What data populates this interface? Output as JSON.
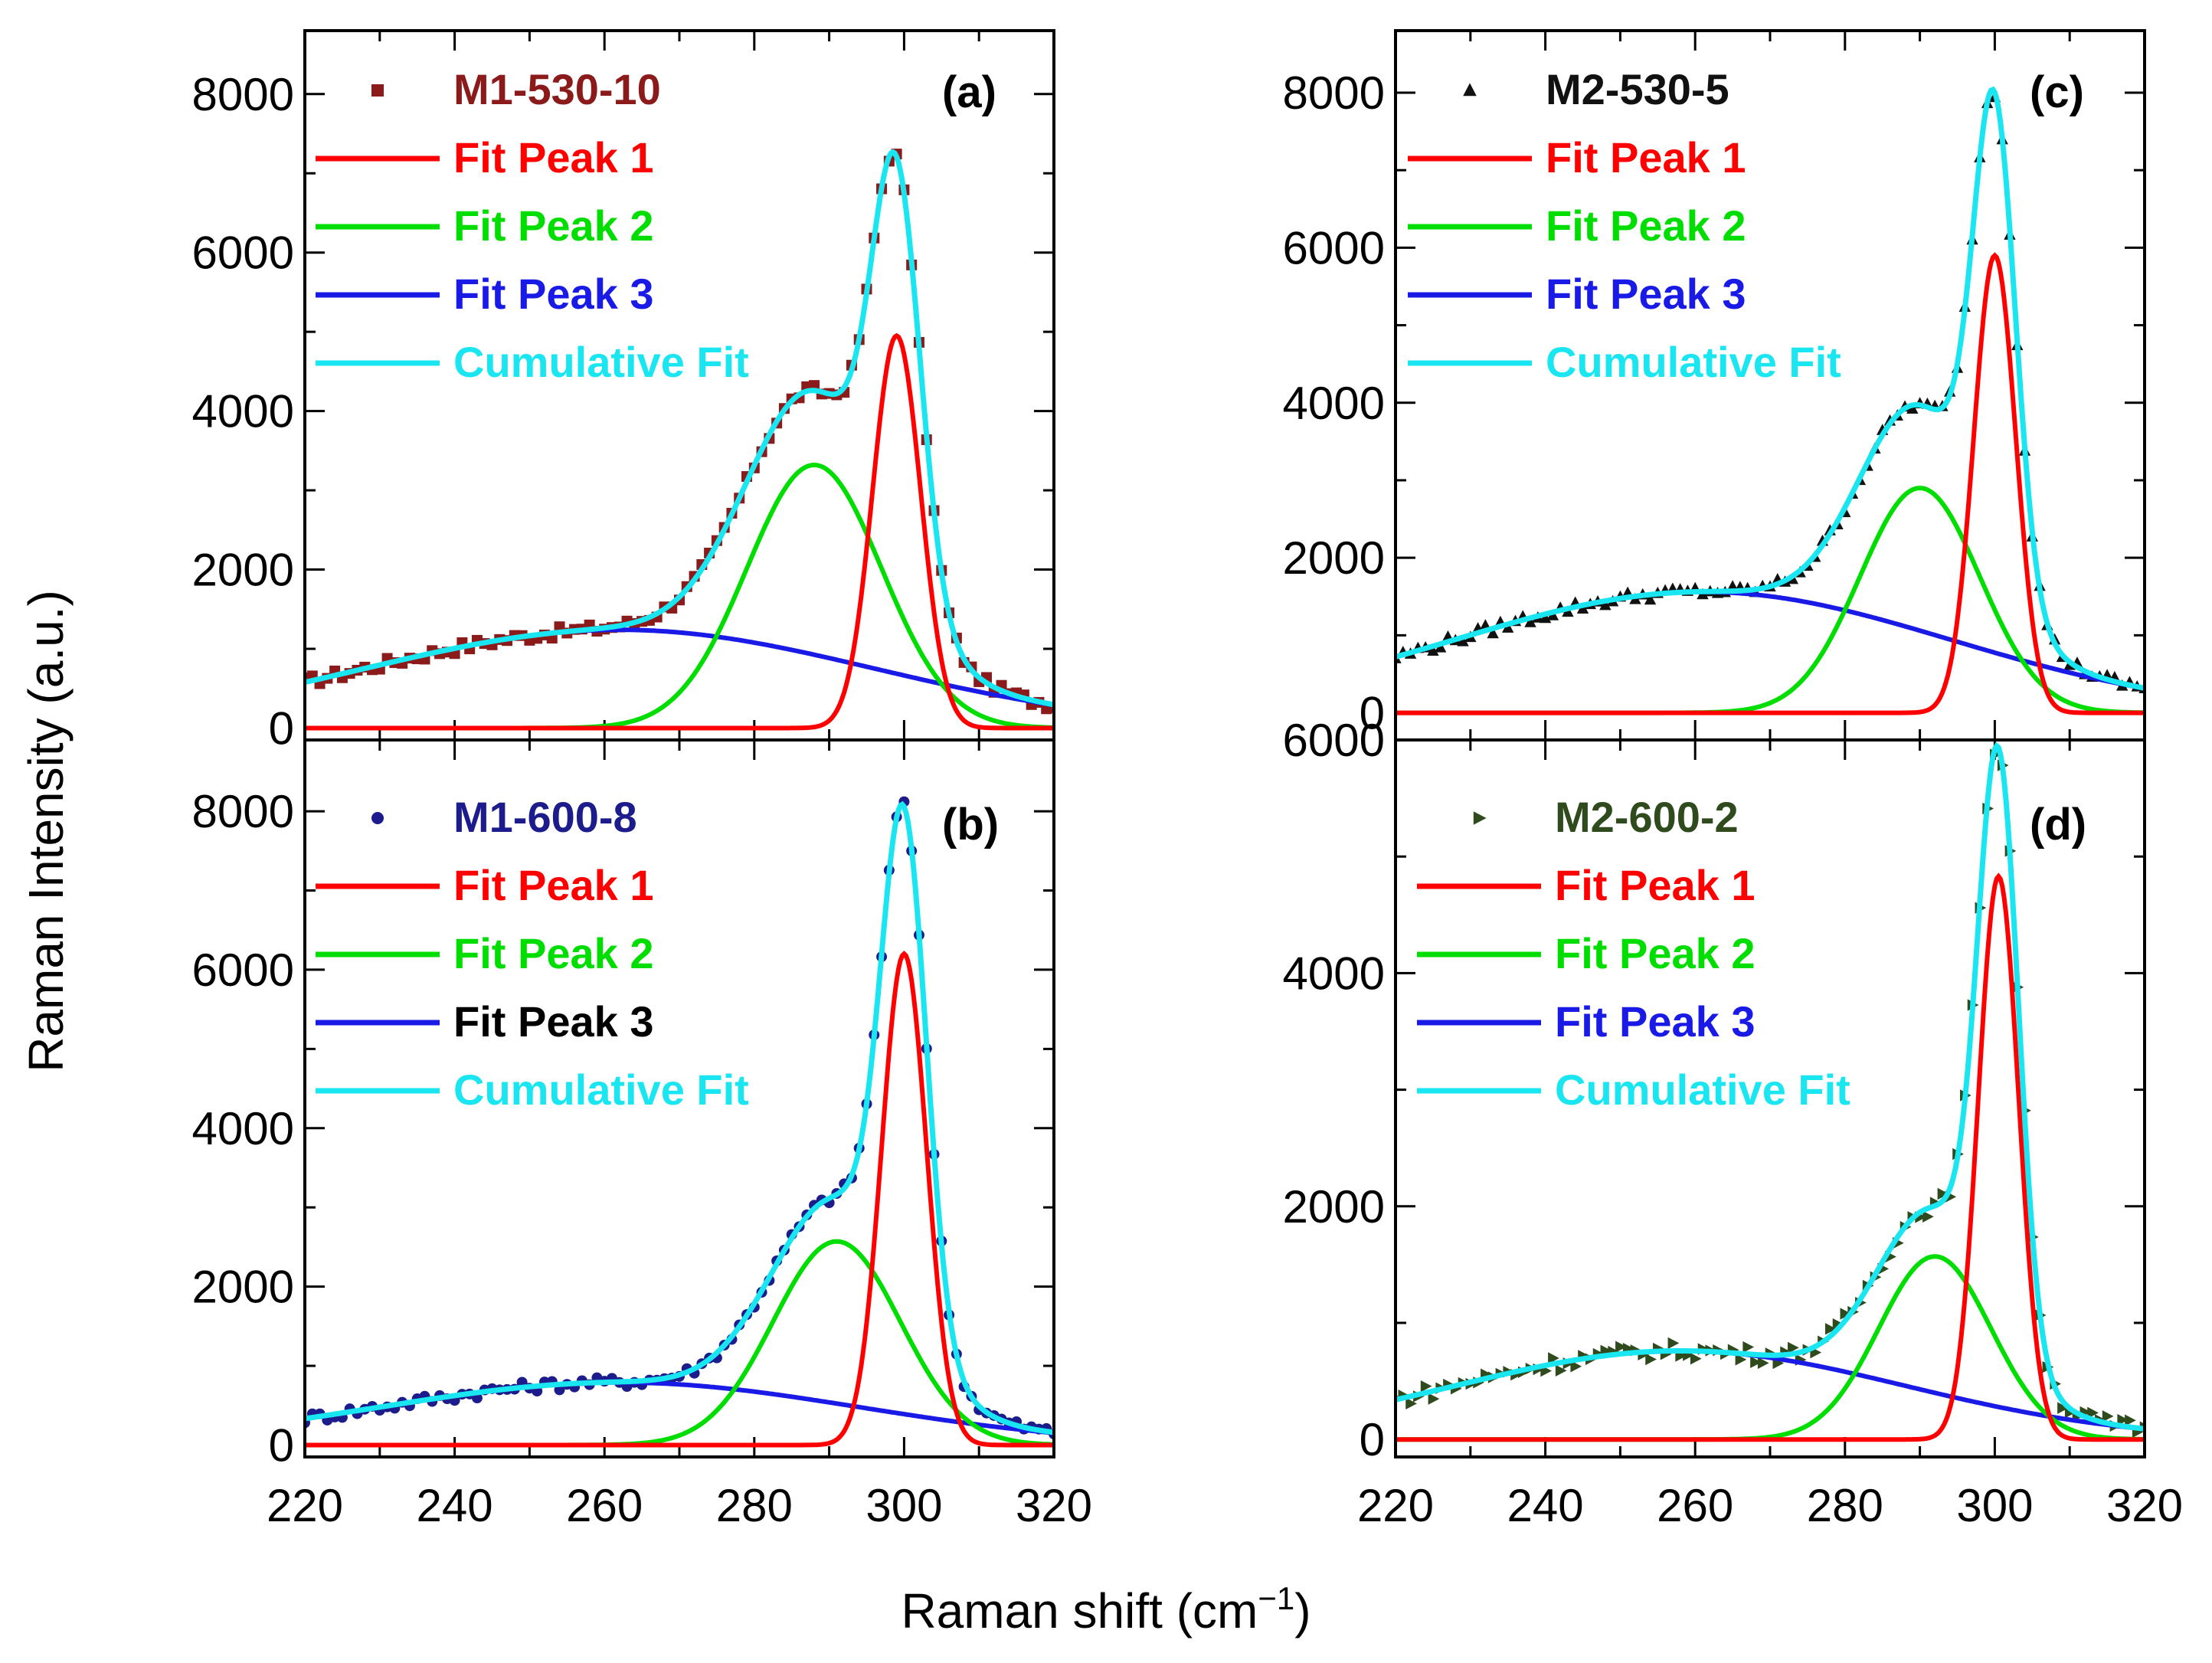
{
  "figure": {
    "ylabel": "Raman Intensity (a.u.)",
    "xlabel": "Raman shift (cm",
    "xlabel_sup": "−1",
    "xlabel_close": ")"
  },
  "colors": {
    "fit_peak_1": "#ff0000",
    "fit_peak_2": "#00dd00",
    "fit_peak_3": "#1a1ae6",
    "cumulative_fit": "#19e6f0",
    "axis": "#000000"
  },
  "chart_data": [
    {
      "id": "a",
      "type": "scatter",
      "panel_label": "(a)",
      "xlim": [
        220,
        320
      ],
      "ylim": [
        -150,
        8800
      ],
      "xticks": [
        "220",
        "240",
        "260",
        "280",
        "300",
        "320"
      ],
      "yticks": [
        "0",
        "2000",
        "4000",
        "6000",
        "8000"
      ],
      "ytick_values": [
        0,
        2000,
        4000,
        6000,
        8000
      ],
      "sample": {
        "name": "M1-530-10",
        "color": "#8b1a1a",
        "marker": "square"
      },
      "legend": [
        {
          "label": "M1-530-10",
          "kind": "marker",
          "color": "#8b1a1a"
        },
        {
          "label": "Fit Peak 1",
          "kind": "line",
          "color": "#ff0000"
        },
        {
          "label": "Fit Peak 2",
          "kind": "line",
          "color": "#00dd00"
        },
        {
          "label": "Fit Peak 3",
          "kind": "line",
          "color": "#1a1ae6"
        },
        {
          "label": "Cumulative Fit",
          "kind": "line",
          "color": "#19e6f0"
        }
      ],
      "peaks": [
        {
          "name": "Fit Peak 1",
          "center": 299.0,
          "amplitude": 4950,
          "sigma": 3.2,
          "color": "#ff0000"
        },
        {
          "name": "Fit Peak 2",
          "center": 288.0,
          "amplitude": 3320,
          "sigma": 9.0,
          "color": "#00dd00"
        },
        {
          "name": "Fit Peak 3",
          "center": 262.0,
          "amplitude": 1240,
          "sigma": 34.0,
          "color": "#1a1ae6"
        }
      ],
      "baseline": -150
    },
    {
      "id": "b",
      "type": "scatter",
      "panel_label": "(b)",
      "xlim": [
        220,
        320
      ],
      "ylim": [
        -150,
        8900
      ],
      "xticks": [
        "220",
        "240",
        "260",
        "280",
        "300",
        "320"
      ],
      "yticks": [
        "0",
        "2000",
        "4000",
        "6000",
        "8000"
      ],
      "ytick_values": [
        0,
        2000,
        4000,
        6000,
        8000
      ],
      "sample": {
        "name": "M1-600-8",
        "color": "#1c1c8c",
        "marker": "circle"
      },
      "legend": [
        {
          "label": "M1-600-8",
          "kind": "marker",
          "color": "#1c1c8c"
        },
        {
          "label": "Fit Peak 1",
          "kind": "line",
          "color": "#ff0000"
        },
        {
          "label": "Fit Peak 2",
          "kind": "line",
          "color": "#00dd00"
        },
        {
          "label": "Fit Peak 3",
          "kind": "line",
          "color": "#1a1ae6",
          "text_color": "#000000"
        },
        {
          "label": "Cumulative Fit",
          "kind": "line",
          "color": "#19e6f0"
        }
      ],
      "peaks": [
        {
          "name": "Fit Peak 1",
          "center": 300.0,
          "amplitude": 6200,
          "sigma": 3.0,
          "color": "#ff0000"
        },
        {
          "name": "Fit Peak 2",
          "center": 291.0,
          "amplitude": 2570,
          "sigma": 8.5,
          "color": "#00dd00"
        },
        {
          "name": "Fit Peak 3",
          "center": 262.0,
          "amplitude": 790,
          "sigma": 32.0,
          "color": "#1a1ae6"
        }
      ],
      "baseline": -150
    },
    {
      "id": "c",
      "type": "scatter",
      "panel_label": "(c)",
      "xlim": [
        220,
        320
      ],
      "ylim": [
        -350,
        8800
      ],
      "xticks": [
        "220",
        "240",
        "260",
        "280",
        "300",
        "320"
      ],
      "yticks": [
        "0",
        "2000",
        "4000",
        "6000",
        "8000"
      ],
      "ytick_values": [
        0,
        2000,
        4000,
        6000,
        8000
      ],
      "sample": {
        "name": "M2-530-5",
        "color": "#111111",
        "marker": "triangle-up"
      },
      "legend": [
        {
          "label": "M2-530-5",
          "kind": "marker",
          "color": "#111111"
        },
        {
          "label": "Fit Peak 1",
          "kind": "line",
          "color": "#ff0000"
        },
        {
          "label": "Fit Peak 2",
          "kind": "line",
          "color": "#00dd00"
        },
        {
          "label": "Fit Peak 3",
          "kind": "line",
          "color": "#1a1ae6"
        },
        {
          "label": "Cumulative Fit",
          "kind": "line",
          "color": "#19e6f0"
        }
      ],
      "peaks": [
        {
          "name": "Fit Peak 1",
          "center": 300.0,
          "amplitude": 5900,
          "sigma": 2.8,
          "color": "#ff0000"
        },
        {
          "name": "Fit Peak 2",
          "center": 290.0,
          "amplitude": 2900,
          "sigma": 8.0,
          "color": "#00dd00"
        },
        {
          "name": "Fit Peak 3",
          "center": 261.0,
          "amplitude": 1560,
          "sigma": 33.0,
          "color": "#1a1ae6"
        }
      ],
      "baseline": -350
    },
    {
      "id": "d",
      "type": "scatter",
      "panel_label": "(d)",
      "xlim": [
        220,
        320
      ],
      "ylim": [
        -150,
        6000
      ],
      "xticks": [
        "220",
        "240",
        "260",
        "280",
        "300",
        "320"
      ],
      "yticks": [
        "0",
        "2000",
        "4000",
        "6000"
      ],
      "ytick_values": [
        0,
        2000,
        4000,
        6000
      ],
      "sample": {
        "name": "M2-600-2",
        "color": "#2f4a1c",
        "marker": "triangle-right"
      },
      "legend": [
        {
          "label": "M2-600-2",
          "kind": "marker",
          "color": "#2f4a1c"
        },
        {
          "label": "Fit Peak 1",
          "kind": "line",
          "color": "#ff0000"
        },
        {
          "label": "Fit Peak 2",
          "kind": "line",
          "color": "#00dd00"
        },
        {
          "label": "Fit Peak 3",
          "kind": "line",
          "color": "#1a1ae6"
        },
        {
          "label": "Cumulative Fit",
          "kind": "line",
          "color": "#19e6f0"
        }
      ],
      "peaks": [
        {
          "name": "Fit Peak 1",
          "center": 300.5,
          "amplitude": 4830,
          "sigma": 2.7,
          "color": "#ff0000"
        },
        {
          "name": "Fit Peak 2",
          "center": 292.0,
          "amplitude": 1570,
          "sigma": 7.5,
          "color": "#00dd00"
        },
        {
          "name": "Fit Peak 3",
          "center": 258.0,
          "amplitude": 760,
          "sigma": 30.0,
          "color": "#1a1ae6"
        }
      ],
      "baseline": -150
    }
  ]
}
